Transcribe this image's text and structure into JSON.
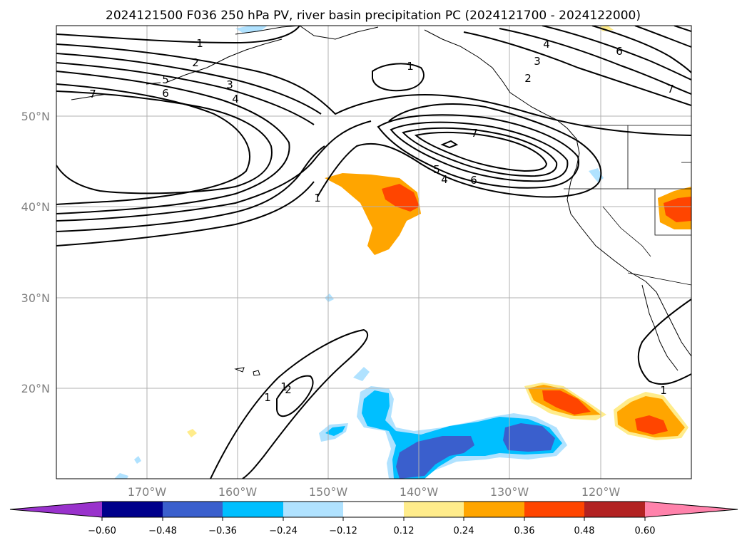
{
  "title": "2024121500 F036 250 hPa PV, river basin precipitation PC (2024121700 - 2024122000)",
  "map": {
    "lat_labels": [
      "50°N",
      "40°N",
      "30°N",
      "20°N"
    ],
    "lon_labels": [
      "170°W",
      "160°W",
      "150°W",
      "140°W",
      "130°W",
      "120°W"
    ],
    "gridlines": true,
    "contour_labels": [
      "1",
      "2",
      "3",
      "4",
      "5",
      "6",
      "7",
      "1",
      "2",
      "3",
      "4",
      "6",
      "7",
      "7",
      "5",
      "4",
      "6",
      "1",
      "1",
      "1",
      "2",
      "1"
    ]
  },
  "colorbar": {
    "ticks": [
      "−0.60",
      "−0.48",
      "−0.36",
      "−0.24",
      "−0.12",
      "0.12",
      "0.24",
      "0.36",
      "0.48",
      "0.60"
    ],
    "colors": [
      "#9932cc",
      "#00008b",
      "#3a5fcd",
      "#00bfff",
      "#b0e2ff",
      "#ffffff",
      "#ffec8b",
      "#ffa500",
      "#ff4500",
      "#b22222",
      "#ff82ab"
    ]
  },
  "chart_data": {
    "type": "heatmap",
    "title": "2024121500 F036 250 hPa PV, river basin precipitation PC (2024121700 - 2024122000)",
    "lon_range": [
      -180,
      -110
    ],
    "lat_range": [
      10,
      60
    ],
    "colorbar_levels": [
      -0.6,
      -0.48,
      -0.36,
      -0.24,
      -0.12,
      0.12,
      0.24,
      0.36,
      0.48,
      0.6
    ],
    "pv_contour_levels": [
      1,
      2,
      3,
      4,
      5,
      6,
      7
    ]
  }
}
